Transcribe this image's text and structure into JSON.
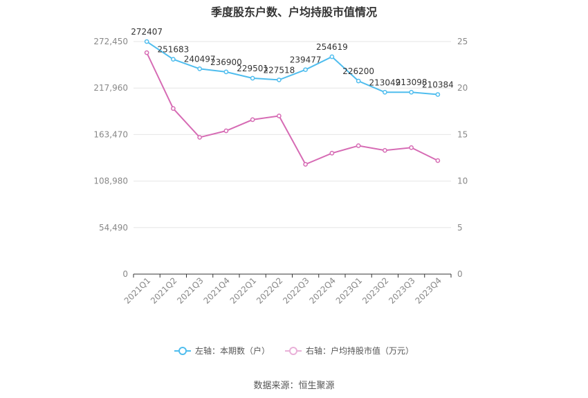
{
  "chart_data": {
    "type": "line",
    "title": "季度股东户数、户均持股市值情况",
    "categories": [
      "2021Q1",
      "2021Q2",
      "2021Q3",
      "2021Q4",
      "2022Q1",
      "2022Q2",
      "2022Q3",
      "2022Q4",
      "2023Q1",
      "2023Q2",
      "2023Q3",
      "2023Q4"
    ],
    "left_axis": {
      "ticks": [
        "0",
        "54,490",
        "108,980",
        "163,470",
        "217,960",
        "272,450"
      ],
      "ylim": [
        0,
        272450
      ]
    },
    "right_axis": {
      "ticks": [
        "0",
        "5",
        "10",
        "15",
        "20",
        "25"
      ],
      "ylim": [
        0,
        25
      ]
    },
    "series": [
      {
        "name": "左轴：本期数（户）",
        "axis": "left",
        "color": "#4fbdee",
        "values": [
          272407,
          251683,
          240497,
          236900,
          229501,
          227518,
          239477,
          254619,
          226200,
          213049,
          213098,
          210384
        ],
        "labels": [
          "272407",
          "251683",
          "240497",
          "236900",
          "229501",
          "227518",
          "239477",
          "254619",
          "226200",
          "213049",
          "213098",
          "210384"
        ]
      },
      {
        "name": "右轴：户均持股市值（万元）",
        "axis": "right",
        "color": "#d66bb4",
        "values": [
          23.8,
          17.8,
          14.7,
          15.4,
          16.6,
          17.0,
          11.8,
          13.0,
          13.8,
          13.3,
          13.6,
          12.2
        ]
      }
    ],
    "grid": true
  },
  "source": "数据来源：恒生聚源"
}
